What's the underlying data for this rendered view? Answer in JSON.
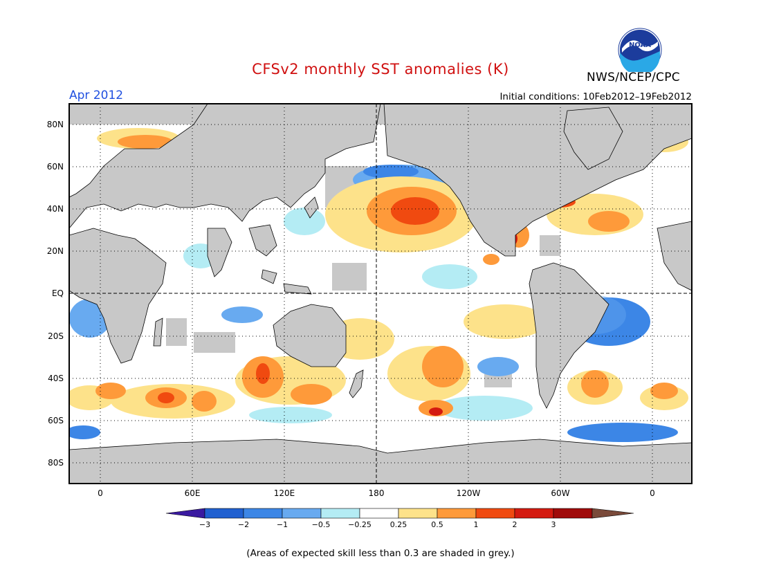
{
  "title": "CFSv2 monthly SST anomalies (K)",
  "valid_month": "Apr 2012",
  "initial_conditions": "Initial conditions: 10Feb2012–19Feb2012",
  "agency": "NWS/NCEP/CPC",
  "logo_text": "NOAA",
  "footnote": "(Areas of expected skill less than 0.3 are shaded in grey.)",
  "map": {
    "lat_labels": [
      "80N",
      "60N",
      "40N",
      "20N",
      "EQ",
      "20S",
      "40S",
      "60S",
      "80S"
    ],
    "lon_labels": [
      "0",
      "60E",
      "120E",
      "180",
      "120W",
      "60W",
      "0"
    ],
    "land_color": "#c8c8c8",
    "ocean_neutral_color": "#ffffff",
    "low_skill_color": "#c8c8c8"
  },
  "legend": {
    "tick_labels": [
      "−3",
      "−2",
      "−1",
      "−0.5",
      "−0.25",
      "0.25",
      "0.5",
      "1",
      "2",
      "3"
    ],
    "colors": [
      "#3a1aa0",
      "#2060d0",
      "#3c86e6",
      "#68aaf0",
      "#b4ecf4",
      "#ffffff",
      "#fde28a",
      "#fe9a3a",
      "#f04a10",
      "#d41a10",
      "#a00a0a",
      "#7a4a3a"
    ]
  }
}
